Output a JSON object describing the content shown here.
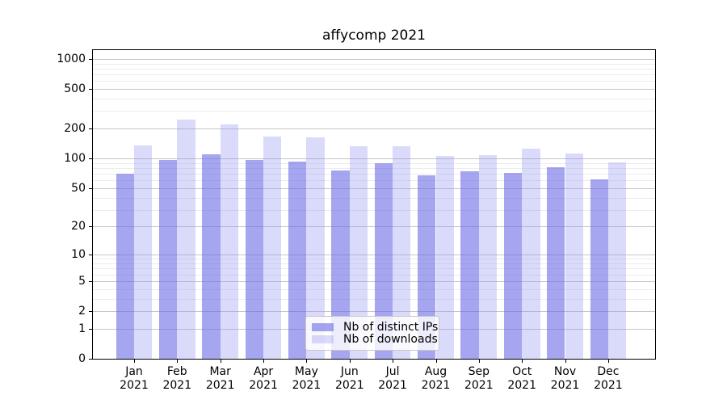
{
  "chart_data": {
    "type": "bar",
    "title": "affycomp 2021",
    "y_scale": "log10(1+value)",
    "ylim": [
      0,
      1250
    ],
    "grid": true,
    "categories": [
      "Jan",
      "Feb",
      "Mar",
      "Apr",
      "May",
      "Jun",
      "Jul",
      "Aug",
      "Sep",
      "Oct",
      "Nov",
      "Dec"
    ],
    "category_year": "2021",
    "y_ticks_major": [
      0,
      1,
      2,
      5,
      10,
      20,
      50,
      100,
      200,
      500,
      1000
    ],
    "y_ticks_minor": [
      3,
      4,
      6,
      7,
      8,
      9,
      30,
      40,
      60,
      70,
      80,
      90,
      300,
      400,
      600,
      700,
      800,
      900
    ],
    "legend_entries": [
      "Nb of distinct IPs",
      "Nb of downloads"
    ],
    "series": [
      {
        "name": "Nb of distinct IPs",
        "color": "#A4A4F0",
        "fill": "rgba(105,105,230,0.6)",
        "values": [
          70,
          96,
          111,
          96,
          93,
          76,
          89,
          67,
          74,
          71,
          82,
          61
        ]
      },
      {
        "name": "Nb of downloads",
        "color": "#DADAF9",
        "fill": "rgba(149,149,241,0.35)",
        "values": [
          135,
          246,
          219,
          167,
          162,
          132,
          132,
          106,
          108,
          126,
          113,
          92
        ]
      }
    ]
  }
}
